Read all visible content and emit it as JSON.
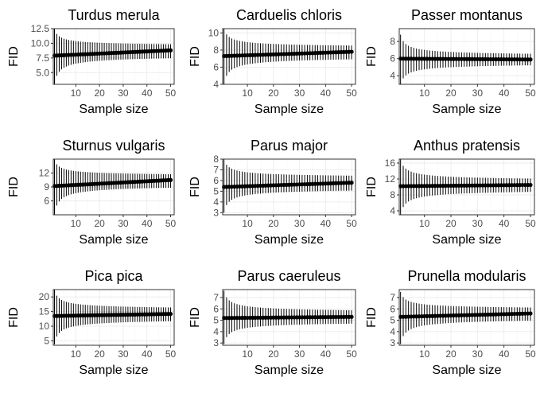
{
  "chart_data": [
    {
      "type": "scatter",
      "title": "Turdus merula",
      "xlabel": "Sample size",
      "ylabel": "FID",
      "xlim": [
        0.5,
        51.5
      ],
      "ylim": [
        3.0,
        12.5
      ],
      "xticks": [
        10,
        20,
        30,
        40,
        50
      ],
      "yticks": [
        5.0,
        7.5,
        10.0,
        12.5
      ],
      "ytick_labels": [
        "5.0",
        "7.5",
        "10.0",
        "12.5"
      ],
      "points": {
        "x": [
          1,
          50
        ],
        "y": [
          7.9,
          8.8
        ]
      },
      "error_bars": {
        "x": [
          1,
          50
        ],
        "lower": [
          2.9,
          8.2
        ],
        "upper": [
          12.5,
          9.4
        ]
      }
    },
    {
      "type": "scatter",
      "title": "Carduelis chloris",
      "xlabel": "Sample size",
      "ylabel": "FID",
      "xlim": [
        0.5,
        51.5
      ],
      "ylim": [
        4.0,
        10.5
      ],
      "xticks": [
        10,
        20,
        30,
        40,
        50
      ],
      "yticks": [
        4,
        6,
        8,
        10
      ],
      "ytick_labels": [
        "4",
        "6",
        "8",
        "10"
      ],
      "points": {
        "x": [
          1,
          50
        ],
        "y": [
          7.3,
          7.8
        ]
      },
      "error_bars": {
        "x": [
          1,
          50
        ],
        "lower": [
          4.0,
          7.4
        ],
        "upper": [
          10.5,
          8.2
        ]
      }
    },
    {
      "type": "scatter",
      "title": "Passer montanus",
      "xlabel": "Sample size",
      "ylabel": "FID",
      "xlim": [
        0.5,
        51.5
      ],
      "ylim": [
        3.0,
        9.5
      ],
      "xticks": [
        10,
        20,
        30,
        40,
        50
      ],
      "yticks": [
        4,
        6,
        8
      ],
      "ytick_labels": [
        "4",
        "6",
        "8"
      ],
      "points": {
        "x": [
          1,
          50
        ],
        "y": [
          6.0,
          5.9
        ]
      },
      "error_bars": {
        "x": [
          1,
          50
        ],
        "lower": [
          2.9,
          5.6
        ],
        "upper": [
          8.8,
          6.2
        ]
      }
    },
    {
      "type": "scatter",
      "title": "Sturnus vulgaris",
      "xlabel": "Sample size",
      "ylabel": "FID",
      "xlim": [
        0.5,
        51.5
      ],
      "ylim": [
        3.0,
        15.0
      ],
      "xticks": [
        10,
        20,
        30,
        40,
        50
      ],
      "yticks": [
        6,
        9,
        12
      ],
      "ytick_labels": [
        "6",
        "9",
        "12"
      ],
      "points": {
        "x": [
          1,
          50
        ],
        "y": [
          9.2,
          10.5
        ]
      },
      "error_bars": {
        "x": [
          1,
          50
        ],
        "lower": [
          3.0,
          9.8
        ],
        "upper": [
          15.0,
          11.2
        ]
      }
    },
    {
      "type": "scatter",
      "title": "Parus major",
      "xlabel": "Sample size",
      "ylabel": "FID",
      "xlim": [
        0.5,
        51.5
      ],
      "ylim": [
        2.8,
        8.0
      ],
      "xticks": [
        10,
        20,
        30,
        40,
        50
      ],
      "yticks": [
        3,
        4,
        5,
        6,
        7,
        8
      ],
      "ytick_labels": [
        "3",
        "4",
        "5",
        "6",
        "7",
        "8"
      ],
      "points": {
        "x": [
          1,
          50
        ],
        "y": [
          5.4,
          5.8
        ]
      },
      "error_bars": {
        "x": [
          1,
          50
        ],
        "lower": [
          3.0,
          5.4
        ],
        "upper": [
          8.0,
          6.2
        ]
      }
    },
    {
      "type": "scatter",
      "title": "Anthus pratensis",
      "xlabel": "Sample size",
      "ylabel": "FID",
      "xlim": [
        0.5,
        51.5
      ],
      "ylim": [
        3.0,
        17.0
      ],
      "xticks": [
        10,
        20,
        30,
        40,
        50
      ],
      "yticks": [
        4,
        8,
        12,
        16
      ],
      "ytick_labels": [
        "4",
        "8",
        "12",
        "16"
      ],
      "points": {
        "x": [
          1,
          50
        ],
        "y": [
          10.2,
          10.5
        ]
      },
      "error_bars": {
        "x": [
          1,
          50
        ],
        "lower": [
          3.0,
          9.7
        ],
        "upper": [
          17.0,
          11.3
        ]
      }
    },
    {
      "type": "scatter",
      "title": "Pica pica",
      "xlabel": "Sample size",
      "ylabel": "FID",
      "xlim": [
        0.5,
        51.5
      ],
      "ylim": [
        3.5,
        22.5
      ],
      "xticks": [
        10,
        20,
        30,
        40,
        50
      ],
      "yticks": [
        5,
        10,
        15,
        20
      ],
      "ytick_labels": [
        "5",
        "10",
        "15",
        "20"
      ],
      "points": {
        "x": [
          1,
          50
        ],
        "y": [
          13.5,
          14.2
        ]
      },
      "error_bars": {
        "x": [
          1,
          50
        ],
        "lower": [
          3.8,
          13.0
        ],
        "upper": [
          22.5,
          15.4
        ]
      }
    },
    {
      "type": "scatter",
      "title": "Parus caeruleus",
      "xlabel": "Sample size",
      "ylabel": "FID",
      "xlim": [
        0.5,
        51.5
      ],
      "ylim": [
        2.8,
        7.7
      ],
      "xticks": [
        10,
        20,
        30,
        40,
        50
      ],
      "yticks": [
        3,
        4,
        5,
        6,
        7
      ],
      "ytick_labels": [
        "3",
        "4",
        "5",
        "6",
        "7"
      ],
      "points": {
        "x": [
          1,
          50
        ],
        "y": [
          5.2,
          5.3
        ]
      },
      "error_bars": {
        "x": [
          1,
          50
        ],
        "lower": [
          2.9,
          5.0
        ],
        "upper": [
          7.6,
          5.6
        ]
      }
    },
    {
      "type": "scatter",
      "title": "Prunella modularis",
      "xlabel": "Sample size",
      "ylabel": "FID",
      "xlim": [
        0.5,
        51.5
      ],
      "ylim": [
        2.8,
        7.7
      ],
      "xticks": [
        10,
        20,
        30,
        40,
        50
      ],
      "yticks": [
        3,
        4,
        5,
        6,
        7
      ],
      "ytick_labels": [
        "3",
        "4",
        "5",
        "6",
        "7"
      ],
      "points": {
        "x": [
          1,
          50
        ],
        "y": [
          5.3,
          5.6
        ]
      },
      "error_bars": {
        "x": [
          1,
          50
        ],
        "lower": [
          2.9,
          5.3
        ],
        "upper": [
          7.5,
          5.9
        ]
      }
    }
  ]
}
